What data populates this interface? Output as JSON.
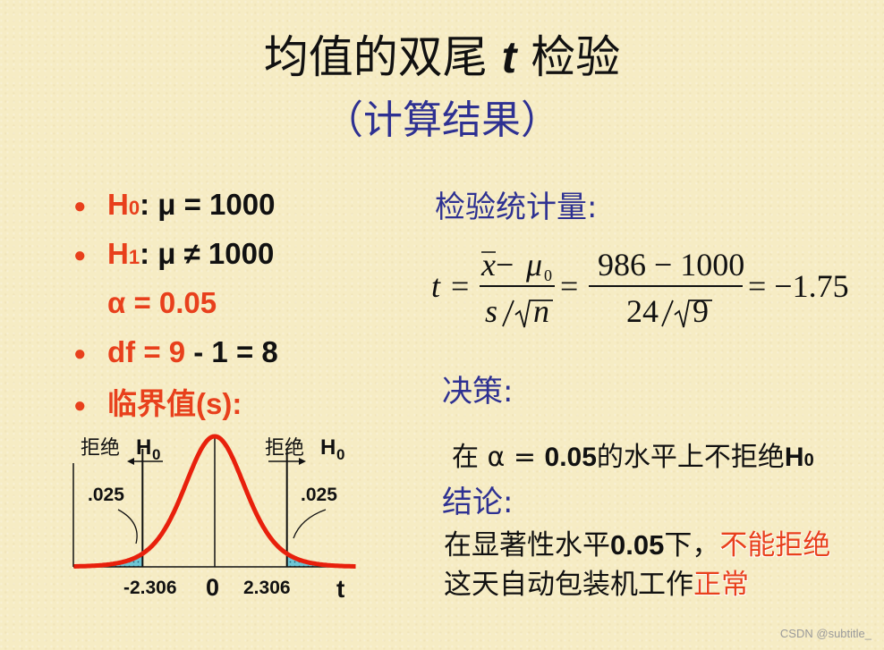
{
  "slide": {
    "title_prefix": "均值的双尾 ",
    "title_t": "t",
    "title_suffix": " 检验",
    "subtitle": "（计算结果）"
  },
  "bullets": {
    "h0_label": "H",
    "h0_sub": "0",
    "h0_rest": ": μ = 1000",
    "h1_label": "H",
    "h1_sub": "1",
    "h1_rest": ": μ ≠ 1000",
    "alpha": "α = 0.05",
    "df_red": "df = 9",
    "df_rest": " - 1 = 8",
    "critical": "临界值(s):"
  },
  "stat_label": "检验统计量:",
  "formula": {
    "t": "t",
    "eq": "=",
    "num1_x": "x",
    "num1_minus": " − ",
    "num1_mu": "μ",
    "num1_mu_sub": "0",
    "den1_s": "s",
    "den1_n": "n",
    "num2": "986 − 1000",
    "den2_a": "24",
    "den2_b": "9",
    "result": "= −1.75"
  },
  "decision_label": "决策:",
  "decision": {
    "prefix": "在 α = ",
    "value": "0.05",
    "mid": "的水平上不拒绝",
    "h": "H",
    "h_sub": "0"
  },
  "conclusion_label": "结论:",
  "conclusion": {
    "part1": "在显著性水平",
    "value": "0.05",
    "part2": "下，",
    "hl1": "不能拒绝",
    "part3": "这天自动包装机工作",
    "hl2": "正常"
  },
  "chart": {
    "reject_left": "拒绝",
    "reject_right": "拒绝",
    "h": "H",
    "h_sub": "0",
    "area_left": ".025",
    "area_right": ".025",
    "tick_left": "-2.306",
    "tick_center": "0",
    "tick_right": "2.306",
    "axis_label": "t"
  },
  "watermark": "CSDN @subtitle_"
}
